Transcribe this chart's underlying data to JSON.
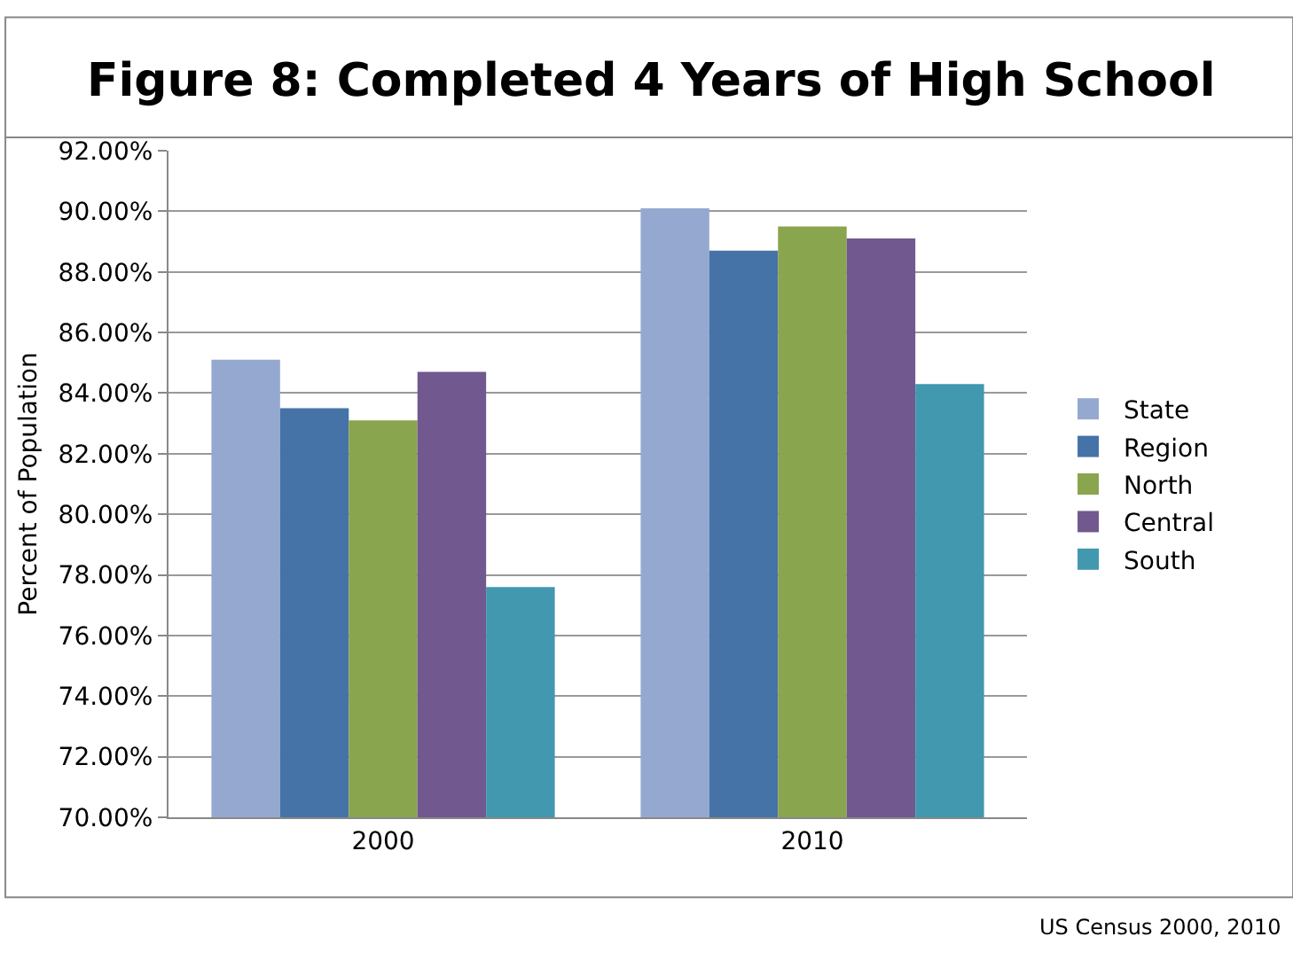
{
  "chart_data": {
    "type": "bar",
    "title": "Figure 8: Completed 4 Years of High School",
    "ylabel": "Percent of Population",
    "categories": [
      "2000",
      "2010"
    ],
    "series": [
      {
        "name": "State",
        "color": "#95a9d0",
        "values": [
          85.1,
          90.1
        ]
      },
      {
        "name": "Region",
        "color": "#4573a7",
        "values": [
          83.5,
          88.7
        ]
      },
      {
        "name": "North",
        "color": "#89a54e",
        "values": [
          83.1,
          89.5
        ]
      },
      {
        "name": "Central",
        "color": "#71588f",
        "values": [
          84.7,
          89.1
        ]
      },
      {
        "name": "South",
        "color": "#4198af",
        "values": [
          77.6,
          84.3
        ]
      }
    ],
    "ylim": [
      70,
      92
    ],
    "yticks": [
      {
        "value": 70,
        "label": "70.00%"
      },
      {
        "value": 72,
        "label": "72.00%"
      },
      {
        "value": 74,
        "label": "74.00%"
      },
      {
        "value": 76,
        "label": "76.00%"
      },
      {
        "value": 78,
        "label": "78.00%"
      },
      {
        "value": 80,
        "label": "80.00%"
      },
      {
        "value": 82,
        "label": "82.00%"
      },
      {
        "value": 84,
        "label": "84.00%"
      },
      {
        "value": 86,
        "label": "86.00%"
      },
      {
        "value": 88,
        "label": "88.00%"
      },
      {
        "value": 90,
        "label": "90.00%"
      },
      {
        "value": 92,
        "label": "92.00%"
      }
    ],
    "grid": "y",
    "legend": "right",
    "annotations": [
      "US Census 2000, 2010"
    ]
  }
}
